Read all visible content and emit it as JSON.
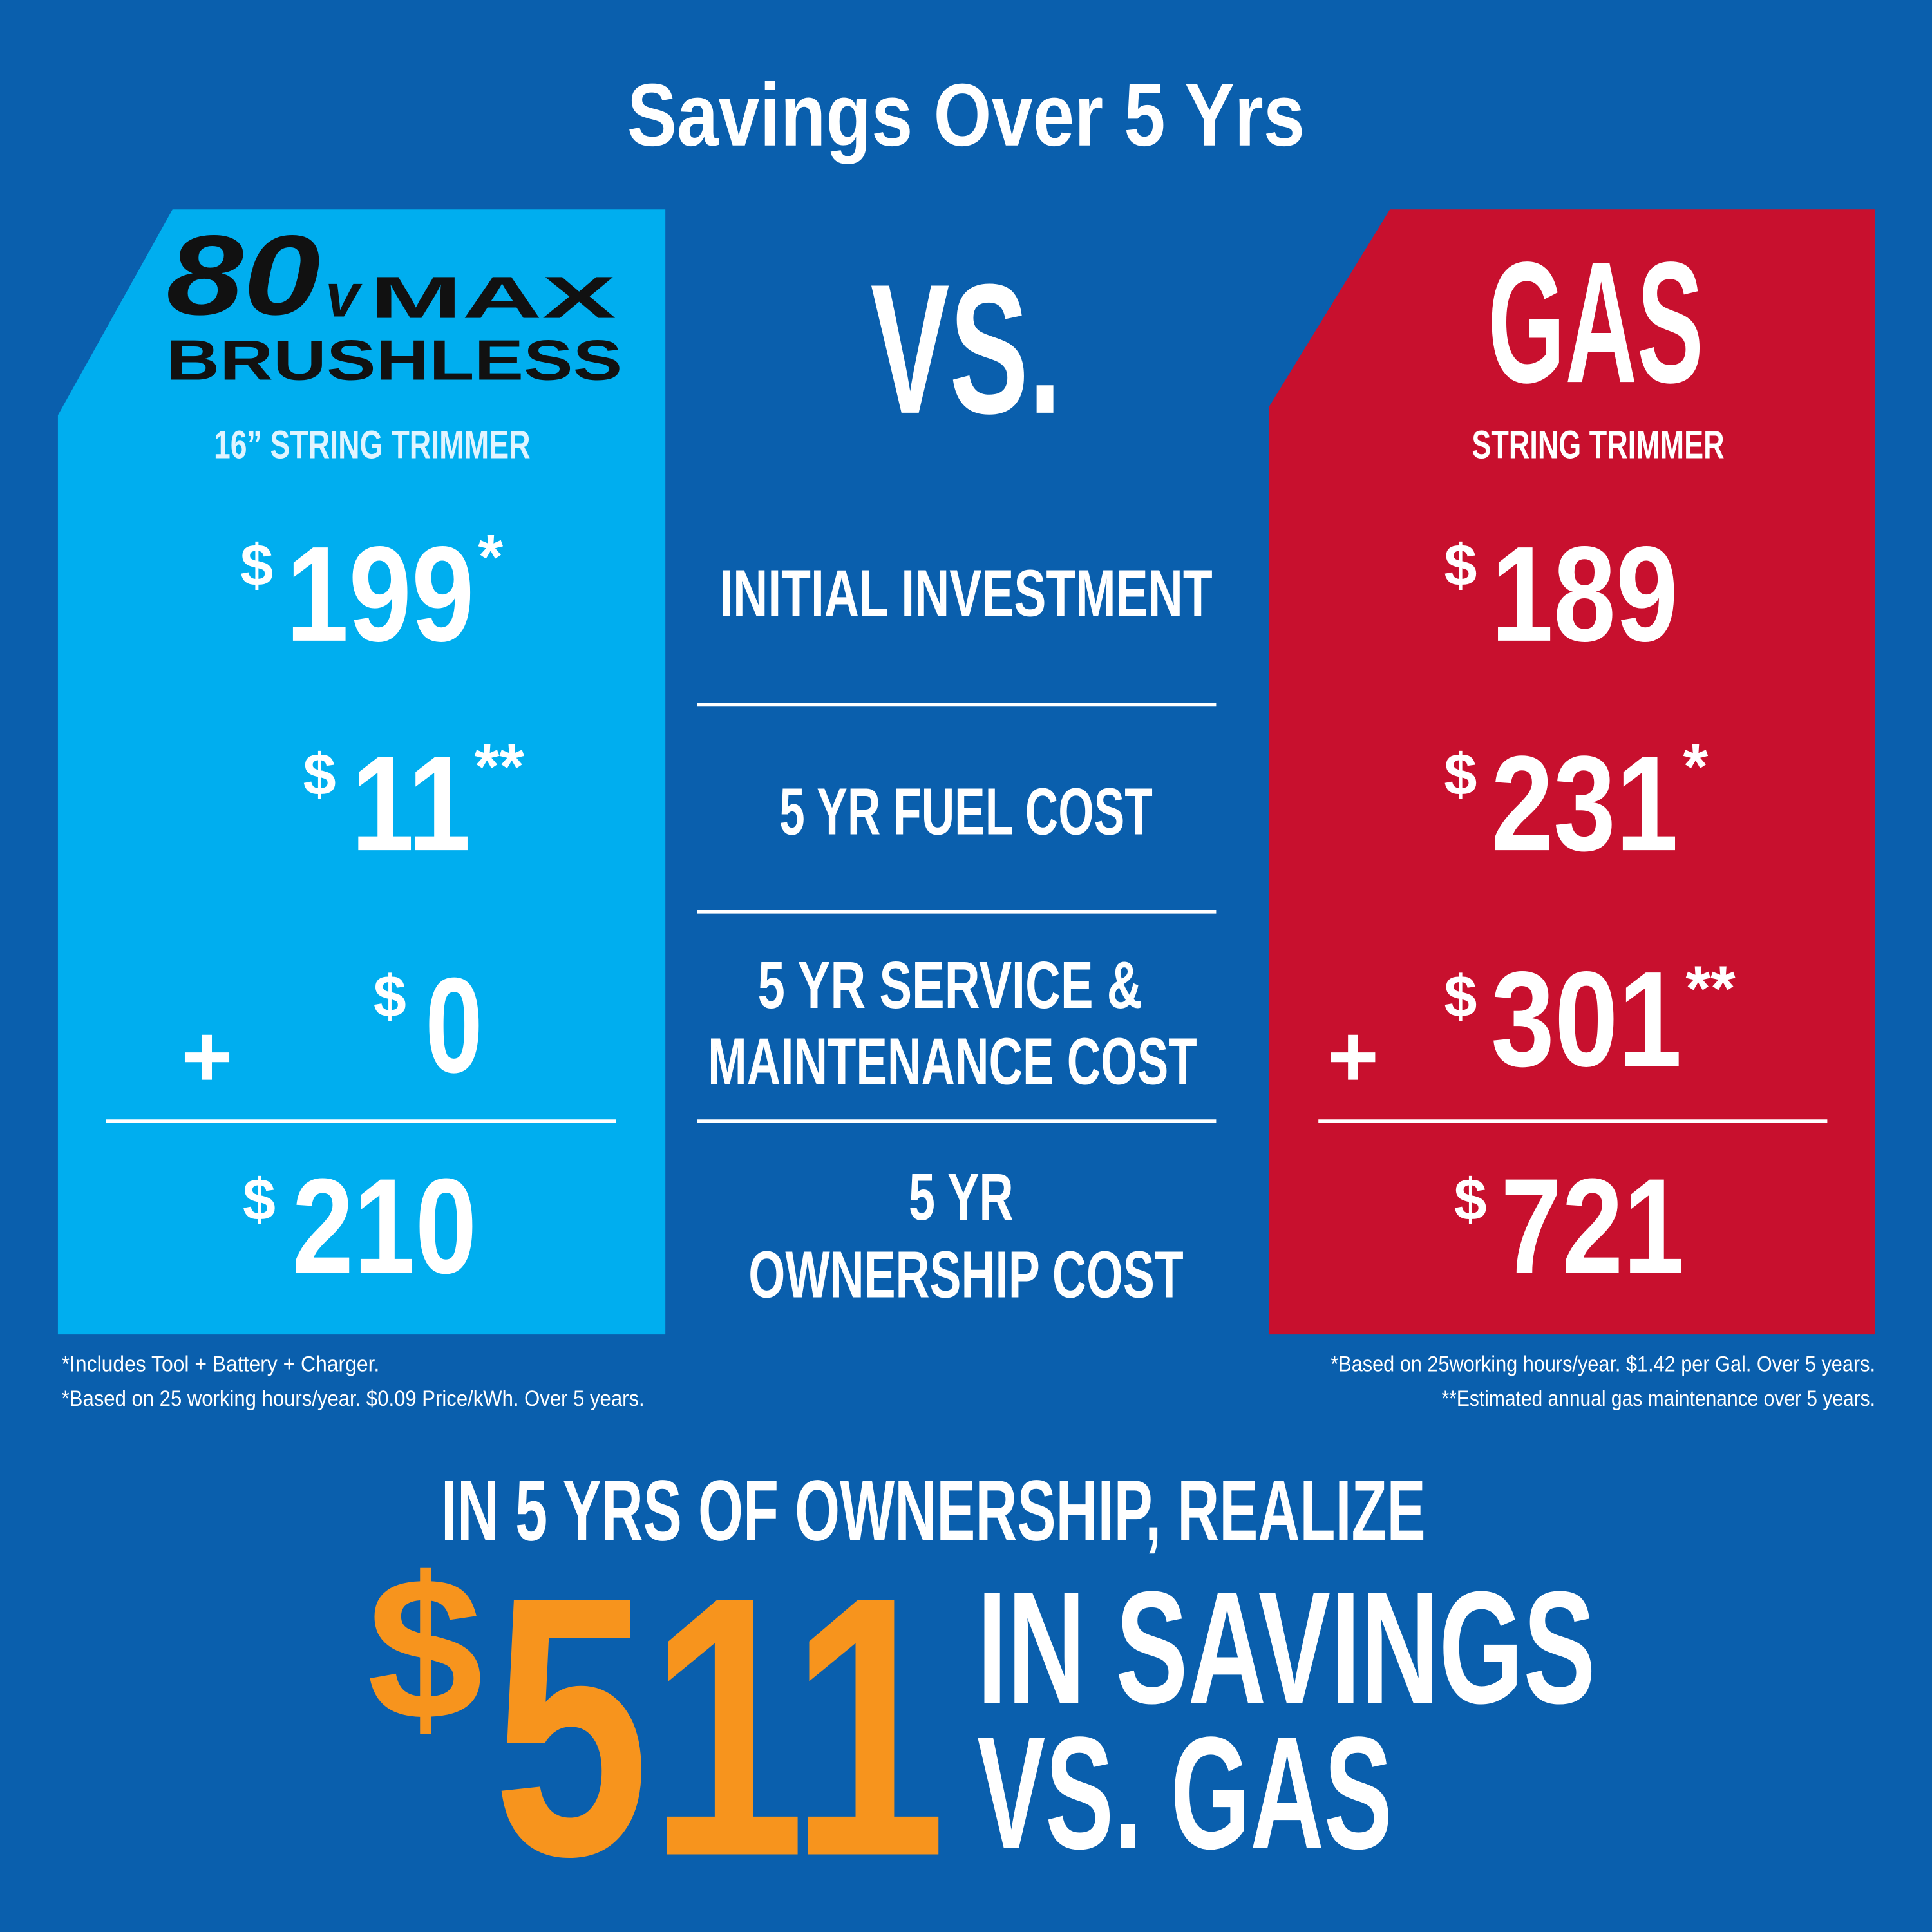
{
  "title": "Savings Over 5 Yrs",
  "currency": "$",
  "operator": "+",
  "vs": "VS.",
  "electric": {
    "logo": {
      "number": "80",
      "unit": "v",
      "name": "MAX",
      "line2": "BRUSHLESS"
    },
    "product": "16” STRING TRIMMER",
    "costs": [
      {
        "amount": 199,
        "note": "*"
      },
      {
        "amount": 11,
        "note": "**"
      },
      {
        "amount": 0
      }
    ],
    "total": 210,
    "footnotes": [
      "*Includes Tool + Battery + Charger.",
      "*Based on 25 working hours/year. $0.09 Price/kWh. Over 5 years."
    ]
  },
  "rows": [
    [
      "INITIAL INVESTMENT"
    ],
    [
      "5 YR FUEL COST"
    ],
    [
      "5 YR SERVICE &",
      "MAINTENANCE COST"
    ]
  ],
  "total_label": [
    "5 YR",
    "OWNERSHIP COST"
  ],
  "gas": {
    "name": "GAS",
    "product": "STRING TRIMMER",
    "costs": [
      {
        "amount": 189
      },
      {
        "amount": 231,
        "note": "*"
      },
      {
        "amount": 301,
        "note": "**"
      }
    ],
    "total": 721,
    "footnotes": [
      "*Based on 25working hours/year. $1.42 per Gal. Over 5 years.",
      "**Estimated annual gas maintenance over 5 years."
    ]
  },
  "summary": {
    "intro": "IN 5 YRS OF OWNERSHIP, REALIZE",
    "amount": 511,
    "text": [
      "IN SAVINGS",
      "VS. GAS"
    ]
  }
}
